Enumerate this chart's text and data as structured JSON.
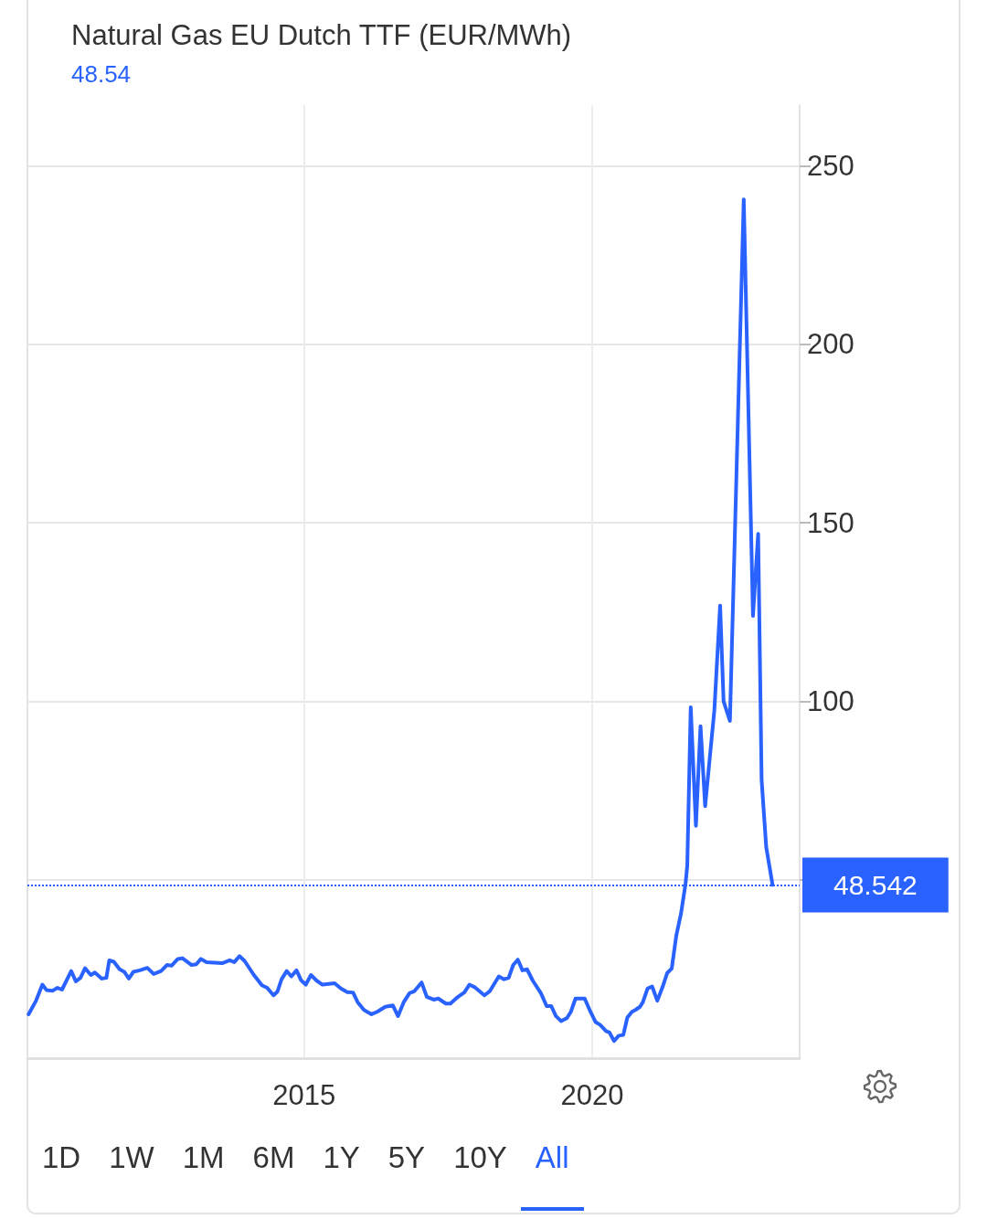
{
  "chart_data": {
    "type": "line",
    "title": "Natural Gas EU Dutch TTF (EUR/MWh)",
    "subtitle": "48.54",
    "x": [
      2010.22,
      2010.35,
      2010.46,
      2010.53,
      2010.64,
      2010.72,
      2010.8,
      2010.96,
      2011.04,
      2011.12,
      2011.2,
      2011.3,
      2011.37,
      2011.49,
      2011.57,
      2011.62,
      2011.7,
      2011.8,
      2011.88,
      2011.96,
      2012.04,
      2012.15,
      2012.28,
      2012.39,
      2012.52,
      2012.62,
      2012.7,
      2012.81,
      2012.89,
      2013.05,
      2013.13,
      2013.21,
      2013.31,
      2013.58,
      2013.71,
      2013.79,
      2013.88,
      2013.97,
      2014.13,
      2014.27,
      2014.36,
      2014.47,
      2014.54,
      2014.61,
      2014.7,
      2014.78,
      2014.87,
      2014.95,
      2015.03,
      2015.12,
      2015.22,
      2015.32,
      2015.53,
      2015.64,
      2015.75,
      2015.85,
      2015.93,
      2016.04,
      2016.17,
      2016.27,
      2016.41,
      2016.54,
      2016.63,
      2016.73,
      2016.83,
      2016.91,
      2017.04,
      2017.13,
      2017.25,
      2017.33,
      2017.46,
      2017.54,
      2017.65,
      2017.78,
      2017.87,
      2017.97,
      2018.13,
      2018.22,
      2018.38,
      2018.47,
      2018.55,
      2018.63,
      2018.71,
      2018.79,
      2018.87,
      2018.97,
      2019.11,
      2019.21,
      2019.29,
      2019.37,
      2019.46,
      2019.56,
      2019.63,
      2019.71,
      2019.87,
      2019.97,
      2020.06,
      2020.14,
      2020.24,
      2020.3,
      2020.38,
      2020.46,
      2020.54,
      2020.61,
      2020.69,
      2020.75,
      2020.83,
      2020.88,
      2020.96,
      2021.04,
      2021.13,
      2021.22,
      2021.3,
      2021.38,
      2021.46,
      2021.54,
      2021.62,
      2021.65,
      2021.71,
      2021.8,
      2021.88,
      2021.96,
      2022.12,
      2022.22,
      2022.28,
      2022.39,
      2022.63,
      2022.79,
      2022.88,
      2022.94,
      2023.02,
      2023.13
    ],
    "values": [
      12.3,
      16.1,
      20.6,
      19.1,
      18.9,
      19.7,
      19.2,
      24.4,
      21.5,
      22.5,
      25.2,
      23.3,
      24.0,
      22.3,
      22.5,
      27.4,
      27.0,
      24.9,
      24.2,
      22.3,
      24.2,
      24.6,
      25.3,
      23.6,
      24.4,
      26.1,
      25.9,
      27.8,
      28.0,
      26.1,
      26.3,
      27.8,
      26.9,
      26.6,
      27.4,
      26.9,
      28.6,
      27.2,
      23.3,
      20.4,
      19.7,
      17.6,
      18.7,
      22.1,
      24.4,
      22.9,
      24.6,
      21.8,
      20.6,
      23.3,
      21.7,
      20.6,
      21.0,
      19.5,
      18.5,
      18.4,
      15.7,
      13.5,
      12.3,
      13.0,
      14.4,
      14.8,
      11.8,
      15.7,
      18.2,
      18.7,
      21.2,
      17.2,
      16.4,
      16.7,
      15.3,
      15.3,
      16.9,
      18.4,
      20.6,
      19.8,
      17.6,
      18.7,
      22.9,
      22.1,
      22.5,
      26.1,
      27.6,
      24.6,
      24.9,
      21.7,
      18.2,
      14.6,
      14.6,
      11.8,
      10.4,
      11.2,
      13.0,
      16.7,
      16.7,
      13.0,
      10.1,
      9.3,
      7.6,
      7.2,
      4.8,
      6.3,
      6.5,
      11.4,
      13.0,
      13.5,
      14.4,
      15.7,
      19.5,
      20.1,
      16.1,
      19.9,
      23.8,
      25.1,
      34.4,
      40.4,
      48.9,
      54.0,
      98.3,
      65.1,
      93.0,
      70.6,
      97.5,
      126.8,
      100.0,
      94.5,
      240.6,
      123.9,
      146.9,
      77.9,
      59.1,
      48.54
    ],
    "color": "#2962ff",
    "xlim": [
      2010.2,
      2023.6
    ],
    "xticks": [
      2015,
      2020
    ],
    "ylim": [
      0,
      267
    ],
    "yticks": [
      {
        "value": 50,
        "label": null
      },
      100,
      150,
      200,
      250
    ],
    "grid": true,
    "ref_lines": [
      {
        "axis": "y",
        "value": 48.542,
        "label": "48.542",
        "color": "#2962ff",
        "line_style": "dotted"
      }
    ],
    "annotations": [
      "1D",
      "1W",
      "1M",
      "6M",
      "1Y",
      "5Y",
      "10Y",
      "All"
    ]
  }
}
